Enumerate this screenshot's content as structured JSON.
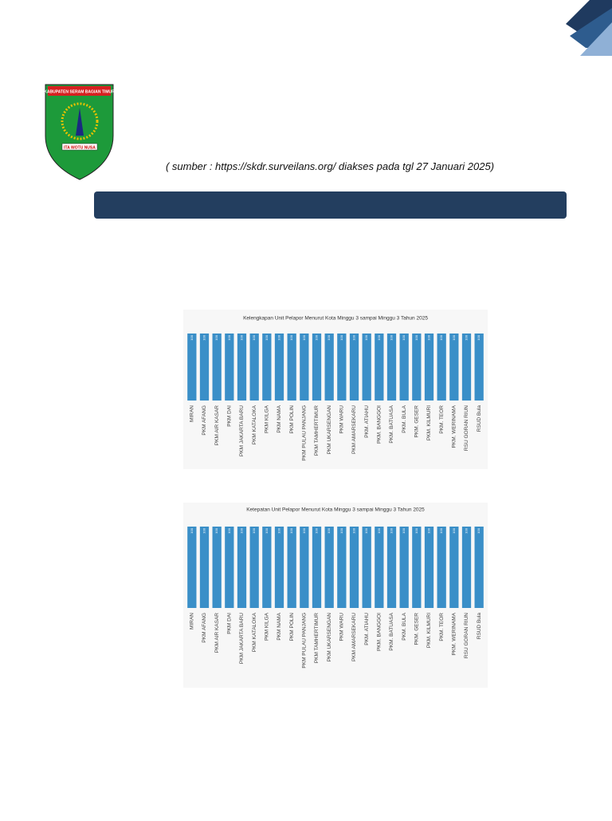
{
  "logo": {
    "top_text": "KABUPATEN SERAM BAGIAN TIMUR",
    "motto": "ITA WOTU NUSA"
  },
  "source": "( sumber : https://skdr.surveilans.org/  diakses pada tgl  27 Januari 2025)",
  "chart_data": [
    {
      "type": "bar",
      "title": "Kelengkapan  Unit Pelapor  Menurut Kota  Minggu 3 sampai Minggu 3 Tahun 2025",
      "categories": [
        "MIRAN",
        "PKM AFANG",
        "PKM AIR KASAR",
        "PKM DAI",
        "PKM JAKARTA BARU",
        "PKM KATALOKA",
        "PKM KILGA",
        "PKM NAMA",
        "PKM POLIN",
        "PKM PULAU PANJANG",
        "PKM TAMHERTIMUR",
        "PKM UKARSENGAN",
        "PKM WARU",
        "PKM AMARSEKARU",
        "PKM. ATIAHU",
        "PKM. BANGGOI",
        "PKM. BATUASA",
        "PKM. BULA",
        "PKM. GESER",
        "PKM. KILMURI",
        "PKM. TEOR",
        "PKM. WERINAMA",
        "RSU GORAN RIUN",
        "RSUD Bula"
      ],
      "values": [
        100,
        100,
        100,
        100,
        100,
        100,
        100,
        100,
        100,
        100,
        100,
        100,
        100,
        100,
        100,
        100,
        100,
        100,
        100,
        100,
        100,
        100,
        100,
        100
      ],
      "color": "#3a8fc8",
      "ylim": [
        0,
        100
      ]
    },
    {
      "type": "bar",
      "title": "Ketepatan  Unit Pelapor  Menurut Kota  Minggu 3 sampai Minggu 3 Tahun 2025",
      "categories": [
        "MIRAN",
        "PKM AFANG",
        "PKM AIR KASAR",
        "PKM DAI",
        "PKM JAKARTA BARU",
        "PKM KATALOKA",
        "PKM KILGA",
        "PKM NAMA",
        "PKM POLIN",
        "PKM PULAU PANJANG",
        "PKM TAMHERTIMUR",
        "PKM UKARSENGAN",
        "PKM WARU",
        "PKM AMARSEKARU",
        "PKM. ATIAHU",
        "PKM. BANGGOI",
        "PKM. BATUASA",
        "PKM. BULA",
        "PKM. GESER",
        "PKM. KILMURI",
        "PKM. TEOR",
        "PKM. WERINAMA",
        "RSU GORAN RIUN",
        "RSUD Bula"
      ],
      "values": [
        100,
        100,
        100,
        100,
        100,
        100,
        100,
        100,
        100,
        100,
        100,
        100,
        100,
        100,
        100,
        100,
        100,
        100,
        100,
        100,
        100,
        100,
        100,
        100
      ],
      "color": "#3a8fc8",
      "ylim": [
        0,
        100
      ]
    }
  ]
}
